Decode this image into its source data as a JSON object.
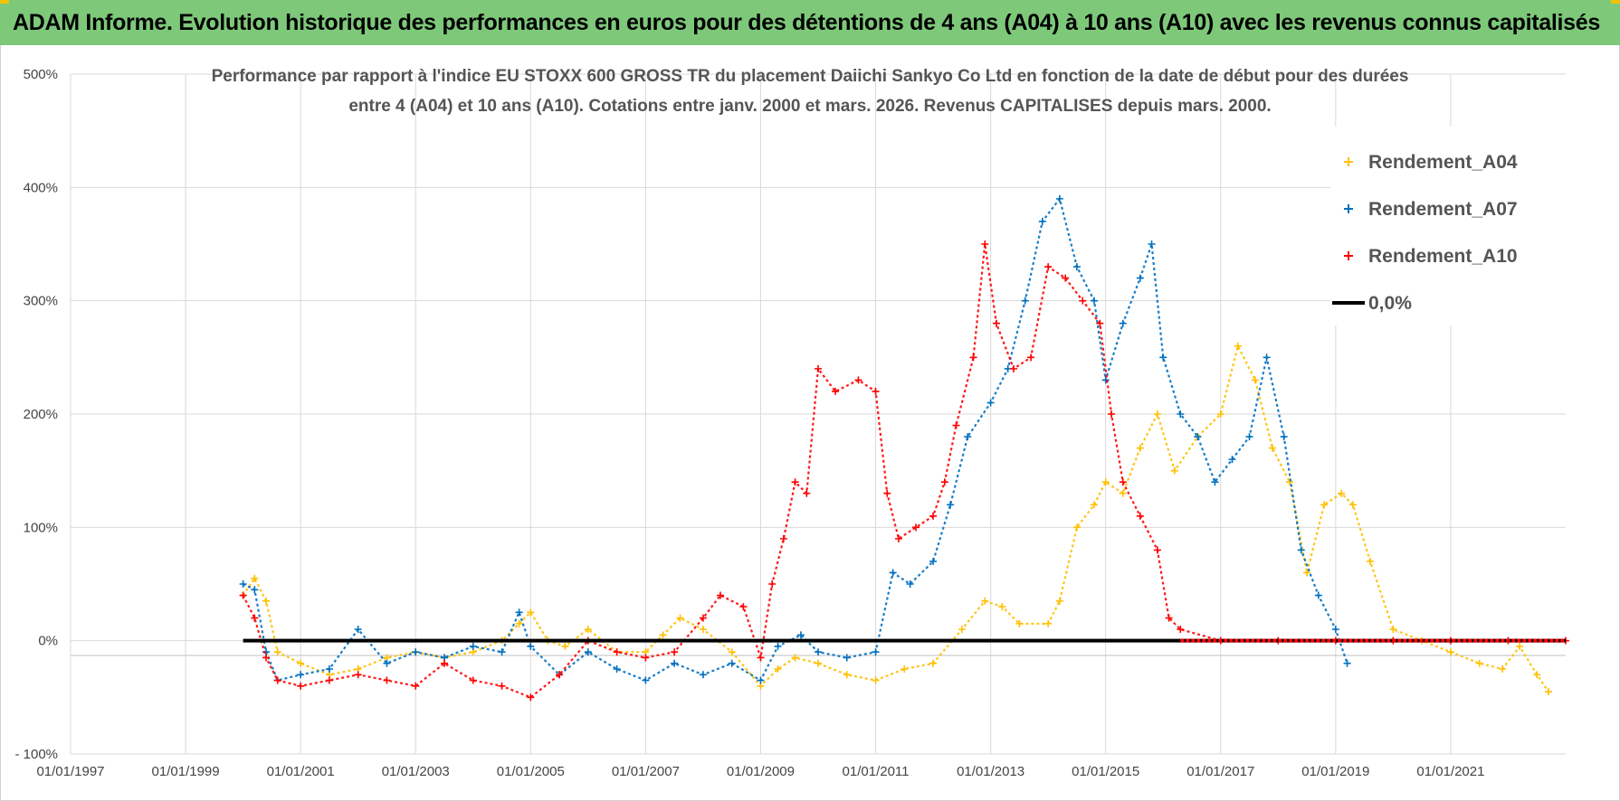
{
  "header": {
    "banner_title": "ADAM Informe. Evolution historique des performances en euros pour des détentions de 4 ans (A04) à 10 ans (A10) avec les revenus connus capitalisés"
  },
  "colors": {
    "banner_bg": "#7ec87a",
    "A04": "#ffc000",
    "A07": "#0070c0",
    "A10": "#ff0000",
    "zero_line": "#000000",
    "grid": "#d9d9d9"
  },
  "chart_data": {
    "type": "scatter",
    "title_line1": "Performance par rapport à l'indice EU STOXX 600 GROSS TR  du placement Daiichi Sankyo Co Ltd en fonction de la date de début pour des durées",
    "title_line2": "entre 4 (A04) et 10 ans (A10).  Cotations entre janv. 2000 et mars. 2026.  Revenus CAPITALISES depuis mars. 2000.",
    "x_axis": {
      "type": "date",
      "range": [
        1997.0,
        2023.0
      ],
      "tick_labels": [
        "01/01/1997",
        "01/01/1999",
        "01/01/2001",
        "01/01/2003",
        "01/01/2005",
        "01/01/2007",
        "01/01/2009",
        "01/01/2011",
        "01/01/2013",
        "01/01/2015",
        "01/01/2017",
        "01/01/2019",
        "01/01/2021"
      ],
      "tick_years": [
        1997,
        1999,
        2001,
        2003,
        2005,
        2007,
        2009,
        2011,
        2013,
        2015,
        2017,
        2019,
        2021
      ]
    },
    "y_axis": {
      "range": [
        -100,
        500
      ],
      "ticks": [
        -100,
        0,
        100,
        200,
        300,
        400,
        500
      ],
      "tick_labels": [
        "- 100%",
        "0%",
        "100%",
        "200%",
        "300%",
        "400%",
        "500%"
      ]
    },
    "grid": true,
    "legend_position": "top-right",
    "legend": [
      "Rendement_A04",
      "Rendement_A07",
      "Rendement_A10",
      "0,0%"
    ],
    "series": [
      {
        "name": "Rendement_A04",
        "marker": "+",
        "x": [
          2000.0,
          2000.2,
          2000.4,
          2000.6,
          2001.0,
          2001.5,
          2002.0,
          2002.5,
          2003.0,
          2003.5,
          2004.0,
          2004.5,
          2004.8,
          2005.0,
          2005.3,
          2005.6,
          2006.0,
          2006.5,
          2007.0,
          2007.3,
          2007.6,
          2008.0,
          2008.5,
          2009.0,
          2009.3,
          2009.6,
          2010.0,
          2010.5,
          2011.0,
          2011.5,
          2012.0,
          2012.5,
          2012.9,
          2013.2,
          2013.5,
          2014.0,
          2014.2,
          2014.5,
          2014.8,
          2015.0,
          2015.3,
          2015.6,
          2015.9,
          2016.2,
          2016.6,
          2017.0,
          2017.3,
          2017.6,
          2017.9,
          2018.2,
          2018.5,
          2018.8,
          2019.1,
          2019.3,
          2019.6,
          2020.0,
          2020.5,
          2021.0,
          2021.5,
          2021.9,
          2022.2,
          2022.5,
          2022.7
        ],
        "y": [
          40,
          55,
          35,
          -10,
          -20,
          -30,
          -25,
          -15,
          -10,
          -15,
          -10,
          0,
          15,
          25,
          0,
          -5,
          10,
          -10,
          -10,
          5,
          20,
          10,
          -10,
          -40,
          -25,
          -15,
          -20,
          -30,
          -35,
          -25,
          -20,
          10,
          35,
          30,
          15,
          15,
          35,
          100,
          120,
          140,
          130,
          170,
          200,
          150,
          180,
          200,
          260,
          230,
          170,
          140,
          60,
          120,
          130,
          120,
          70,
          10,
          0,
          -10,
          -20,
          -25,
          -5,
          -30,
          -45
        ]
      },
      {
        "name": "Rendement_A07",
        "marker": "+",
        "x": [
          2000.0,
          2000.2,
          2000.4,
          2000.6,
          2001.0,
          2001.5,
          2002.0,
          2002.5,
          2003.0,
          2003.5,
          2004.0,
          2004.5,
          2004.8,
          2005.0,
          2005.5,
          2006.0,
          2006.5,
          2007.0,
          2007.5,
          2008.0,
          2008.5,
          2009.0,
          2009.3,
          2009.7,
          2010.0,
          2010.5,
          2011.0,
          2011.3,
          2011.6,
          2012.0,
          2012.3,
          2012.6,
          2013.0,
          2013.3,
          2013.6,
          2013.9,
          2014.2,
          2014.5,
          2014.8,
          2015.0,
          2015.3,
          2015.6,
          2015.8,
          2016.0,
          2016.3,
          2016.6,
          2016.9,
          2017.2,
          2017.5,
          2017.8,
          2018.1,
          2018.4,
          2018.7,
          2019.0,
          2019.2
        ],
        "y": [
          50,
          45,
          -10,
          -35,
          -30,
          -25,
          10,
          -20,
          -10,
          -15,
          -5,
          -10,
          25,
          -5,
          -30,
          -10,
          -25,
          -35,
          -20,
          -30,
          -20,
          -35,
          -5,
          5,
          -10,
          -15,
          -10,
          60,
          50,
          70,
          120,
          180,
          210,
          240,
          300,
          370,
          390,
          330,
          300,
          230,
          280,
          320,
          350,
          250,
          200,
          180,
          140,
          160,
          180,
          250,
          180,
          80,
          40,
          10,
          -20
        ]
      },
      {
        "name": "Rendement_A10",
        "marker": "+",
        "x": [
          2000.0,
          2000.2,
          2000.4,
          2000.6,
          2001.0,
          2001.5,
          2002.0,
          2002.5,
          2003.0,
          2003.5,
          2004.0,
          2004.5,
          2005.0,
          2005.5,
          2006.0,
          2006.5,
          2007.0,
          2007.5,
          2008.0,
          2008.3,
          2008.7,
          2009.0,
          2009.2,
          2009.4,
          2009.6,
          2009.8,
          2010.0,
          2010.3,
          2010.7,
          2011.0,
          2011.2,
          2011.4,
          2011.7,
          2012.0,
          2012.2,
          2012.4,
          2012.7,
          2012.9,
          2013.1,
          2013.4,
          2013.7,
          2014.0,
          2014.3,
          2014.6,
          2014.9,
          2015.1,
          2015.3,
          2015.6,
          2015.9,
          2016.1,
          2016.3,
          2017.0,
          2018.0,
          2019.0,
          2020.0,
          2021.0,
          2022.0,
          2023.0
        ],
        "y": [
          40,
          20,
          -15,
          -35,
          -40,
          -35,
          -30,
          -35,
          -40,
          -20,
          -35,
          -40,
          -50,
          -30,
          0,
          -10,
          -15,
          -10,
          20,
          40,
          30,
          -15,
          50,
          90,
          140,
          130,
          240,
          220,
          230,
          220,
          130,
          90,
          100,
          110,
          140,
          190,
          250,
          350,
          280,
          240,
          250,
          330,
          320,
          300,
          280,
          200,
          140,
          110,
          80,
          20,
          10,
          0,
          0,
          0,
          0,
          0,
          0,
          0
        ]
      },
      {
        "name": "0,0%",
        "marker": "line",
        "x": [
          2000.0,
          2023.0
        ],
        "y": [
          0,
          0
        ]
      }
    ]
  }
}
